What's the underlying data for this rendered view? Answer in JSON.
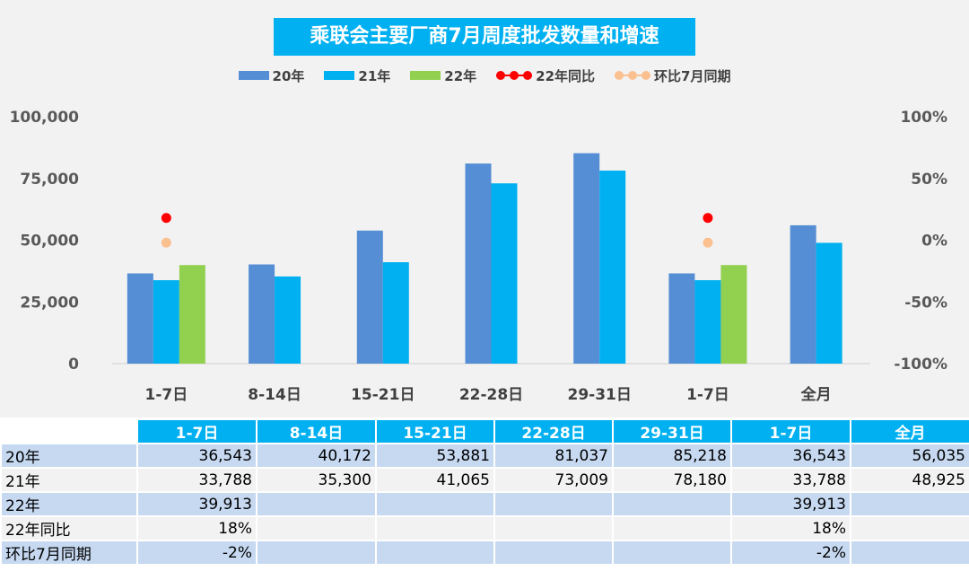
{
  "chart_data": {
    "type": "bar",
    "title": "乘联会主要厂商7月周度批发数量和增速",
    "categories": [
      "1-7日",
      "8-14日",
      "15-21日",
      "22-28日",
      "29-31日",
      "1-7日",
      "全月"
    ],
    "series": [
      {
        "name": "20年",
        "type": "bar",
        "axis": "left",
        "color": "#558ed5",
        "values": [
          36543,
          40172,
          53881,
          81037,
          85218,
          36543,
          56035
        ]
      },
      {
        "name": "21年",
        "type": "bar",
        "axis": "left",
        "color": "#00b0f0",
        "values": [
          33788,
          35300,
          41065,
          73009,
          78180,
          33788,
          48925
        ]
      },
      {
        "name": "22年",
        "type": "bar",
        "axis": "left",
        "color": "#92d050",
        "values": [
          39913,
          null,
          null,
          null,
          null,
          39913,
          null
        ]
      },
      {
        "name": "22年同比",
        "type": "line",
        "axis": "right",
        "color": "#ff0000",
        "values": [
          0.18,
          null,
          null,
          null,
          null,
          0.18,
          null
        ]
      },
      {
        "name": "环比7月同期",
        "type": "line",
        "axis": "right",
        "color": "#fac090",
        "values": [
          -0.02,
          null,
          null,
          null,
          null,
          -0.02,
          null
        ]
      }
    ],
    "left_axis": {
      "min": 0,
      "max": 100000,
      "ticks": [
        0,
        25000,
        50000,
        75000,
        100000
      ],
      "tick_labels": [
        "0",
        "25,000",
        "50,000",
        "75,000",
        "100,000"
      ]
    },
    "right_axis": {
      "min": -1,
      "max": 1,
      "ticks": [
        -1,
        -0.5,
        0,
        0.5,
        1
      ],
      "tick_labels": [
        "-100%",
        "-50%",
        "0%",
        "50%",
        "100%"
      ]
    },
    "legend_position": "top",
    "grid": false
  },
  "table": {
    "headers": [
      "",
      "1-7日",
      "8-14日",
      "15-21日",
      "22-28日",
      "29-31日",
      "1-7日",
      "全月"
    ],
    "rows": [
      {
        "label": "20年",
        "cells": [
          "36,543",
          "40,172",
          "53,881",
          "81,037",
          "85,218",
          "36,543",
          "56,035"
        ]
      },
      {
        "label": "21年",
        "cells": [
          "33,788",
          "35,300",
          "41,065",
          "73,009",
          "78,180",
          "33,788",
          "48,925"
        ]
      },
      {
        "label": "22年",
        "cells": [
          "39,913",
          "",
          "",
          "",
          "",
          "39,913",
          ""
        ]
      },
      {
        "label": "22年同比",
        "cells": [
          "18%",
          "",
          "",
          "",
          "",
          "18%",
          ""
        ]
      },
      {
        "label": "环比7月同期",
        "cells": [
          "-2%",
          "",
          "",
          "",
          "",
          "-2%",
          ""
        ]
      }
    ]
  }
}
